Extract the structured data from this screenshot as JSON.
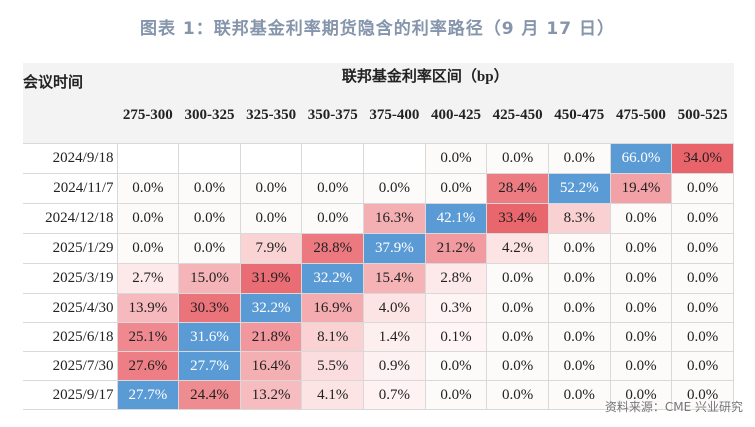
{
  "title": "图表 1：联邦基金利率期货隐含的利率路径（9 月 17 日）",
  "source": "资料来源：CME 兴业研究",
  "colors": {
    "max_cell": "#5b9bd5",
    "high": "#e9636b",
    "low": "#fde9ea",
    "title": "#8595ab"
  },
  "chart_data": {
    "type": "heatmap",
    "title": "图表 1：联邦基金利率期货隐含的利率路径（9 月 17 日）",
    "row_header": "会议时间",
    "column_group_header": "联邦基金利率区间（bp）",
    "columns": [
      "275-300",
      "300-325",
      "325-350",
      "350-375",
      "375-400",
      "400-425",
      "425-450",
      "450-475",
      "475-500",
      "500-525"
    ],
    "rows": [
      {
        "date": "2024/9/18",
        "values": [
          null,
          null,
          null,
          null,
          null,
          "0.0%",
          "0.0%",
          "0.0%",
          "66.0%",
          "34.0%"
        ]
      },
      {
        "date": "2024/11/7",
        "values": [
          "0.0%",
          "0.0%",
          "0.0%",
          "0.0%",
          "0.0%",
          "0.0%",
          "28.4%",
          "52.2%",
          "19.4%",
          "0.0%"
        ]
      },
      {
        "date": "2024/12/18",
        "values": [
          "0.0%",
          "0.0%",
          "0.0%",
          "0.0%",
          "16.3%",
          "42.1%",
          "33.4%",
          "8.3%",
          "0.0%",
          "0.0%"
        ]
      },
      {
        "date": "2025/1/29",
        "values": [
          "0.0%",
          "0.0%",
          "7.9%",
          "28.8%",
          "37.9%",
          "21.2%",
          "4.2%",
          "0.0%",
          "0.0%",
          "0.0%"
        ]
      },
      {
        "date": "2025/3/19",
        "values": [
          "2.7%",
          "15.0%",
          "31.9%",
          "32.2%",
          "15.4%",
          "2.8%",
          "0.0%",
          "0.0%",
          "0.0%",
          "0.0%"
        ]
      },
      {
        "date": "2025/4/30",
        "values": [
          "13.9%",
          "30.3%",
          "32.2%",
          "16.9%",
          "4.0%",
          "0.3%",
          "0.0%",
          "0.0%",
          "0.0%",
          "0.0%"
        ]
      },
      {
        "date": "2025/6/18",
        "values": [
          "25.1%",
          "31.6%",
          "21.8%",
          "8.1%",
          "1.4%",
          "0.1%",
          "0.0%",
          "0.0%",
          "0.0%",
          "0.0%"
        ]
      },
      {
        "date": "2025/7/30",
        "values": [
          "27.6%",
          "27.7%",
          "16.4%",
          "5.5%",
          "0.9%",
          "0.0%",
          "0.0%",
          "0.0%",
          "0.0%",
          "0.0%"
        ]
      },
      {
        "date": "2025/9/17",
        "values": [
          "27.7%",
          "24.4%",
          "13.2%",
          "4.1%",
          "0.7%",
          "0.0%",
          "0.0%",
          "0.0%",
          "0.0%",
          "0.0%"
        ]
      }
    ]
  }
}
